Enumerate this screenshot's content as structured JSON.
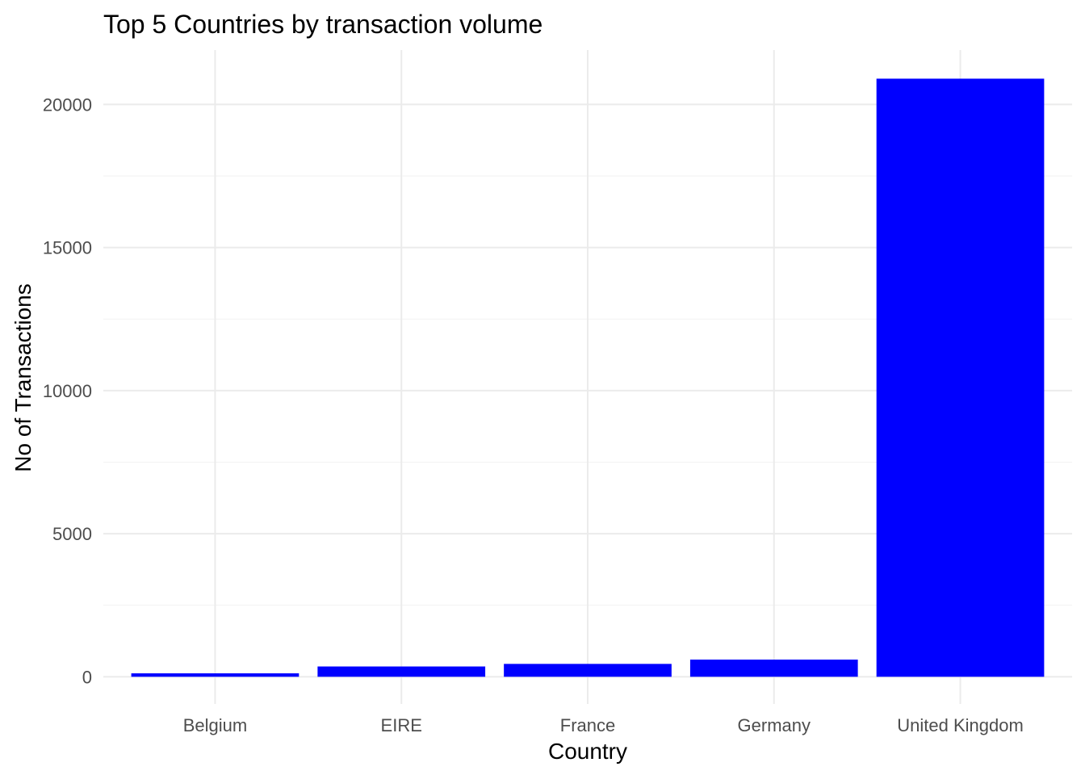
{
  "chart_data": {
    "type": "bar",
    "title": "Top 5 Countries by transaction volume",
    "xlabel": "Country",
    "ylabel": "No of Transactions",
    "categories": [
      "Belgium",
      "EIRE",
      "France",
      "Germany",
      "United Kingdom"
    ],
    "values": [
      120,
      360,
      450,
      600,
      20900
    ],
    "ylim": [
      -950,
      21900
    ],
    "yticks": [
      0,
      5000,
      10000,
      15000,
      20000
    ],
    "ytick_labels": [
      "0",
      "5000",
      "10000",
      "15000",
      "20000"
    ],
    "grid": true,
    "bar_color": "#0000ff"
  }
}
